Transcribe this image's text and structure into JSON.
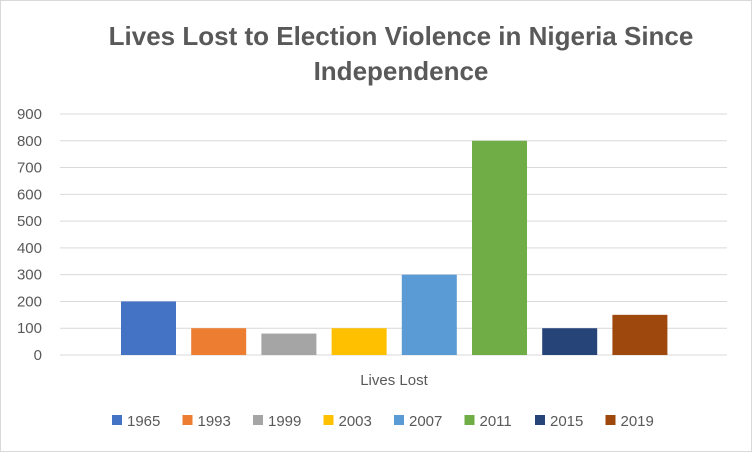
{
  "chart_data": {
    "type": "bar",
    "title": "Lives Lost to Election Violence in Nigeria Since Independence",
    "category": "Lives Lost",
    "ylim": [
      0,
      900
    ],
    "yticks": [
      0,
      100,
      200,
      300,
      400,
      500,
      600,
      700,
      800,
      900
    ],
    "grid": true,
    "legend_position": "bottom",
    "series": [
      {
        "name": "1965",
        "value": 200,
        "color": "#4472C4"
      },
      {
        "name": "1993",
        "value": 100,
        "color": "#ED7D31"
      },
      {
        "name": "1999",
        "value": 80,
        "color": "#A5A5A5"
      },
      {
        "name": "2003",
        "value": 100,
        "color": "#FFC000"
      },
      {
        "name": "2007",
        "value": 300,
        "color": "#5B9BD5"
      },
      {
        "name": "2011",
        "value": 800,
        "color": "#70AD47"
      },
      {
        "name": "2015",
        "value": 100,
        "color": "#264478"
      },
      {
        "name": "2019",
        "value": 150,
        "color": "#9E480E"
      }
    ]
  }
}
